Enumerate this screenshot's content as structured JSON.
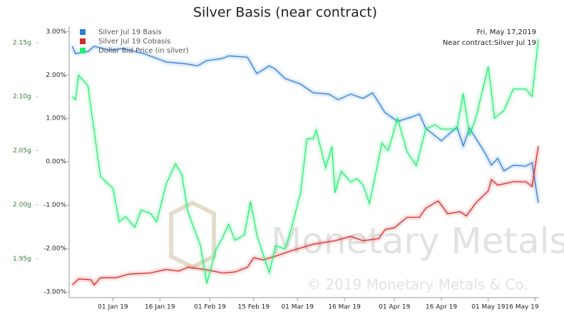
{
  "chart_data": {
    "type": "line",
    "title": "Silver Basis (near contract)",
    "annotations": [
      "Fri, May 17,2019",
      "Near contract:Silver Jul 19"
    ],
    "watermark": [
      "Monetary Metals",
      "© 2019 Monetary Metals & Co."
    ],
    "xlim": [
      "2018-12-18",
      "2019-05-17"
    ],
    "xticks": [
      {
        "value": "2019-01-01",
        "label": "01 Jan 19"
      },
      {
        "value": "2019-01-16",
        "label": "16 Jan 19"
      },
      {
        "value": "2019-02-01",
        "label": "01 Feb 19"
      },
      {
        "value": "2019-02-15",
        "label": "15 Feb 19"
      },
      {
        "value": "2019-03-01",
        "label": "01 Mar 19"
      },
      {
        "value": "2019-03-16",
        "label": "16 Mar 19"
      },
      {
        "value": "2019-04-01",
        "label": "01 Apr 19"
      },
      {
        "value": "2019-04-16",
        "label": "16 Apr 19"
      },
      {
        "value": "2019-05-01",
        "label": "01 May 19"
      },
      {
        "value": "2019-05-16",
        "label": "16 May 19"
      }
    ],
    "ylim": [
      -3.13,
      3.12
    ],
    "yticks": [
      {
        "value": 3,
        "label": "3.00%"
      },
      {
        "value": 2,
        "label": "2.00%"
      },
      {
        "value": 1,
        "label": "1.00%"
      },
      {
        "value": 0,
        "label": "0.00%"
      },
      {
        "value": -1,
        "label": "-1.00%"
      },
      {
        "value": -2,
        "label": "-2.00%"
      },
      {
        "value": -3,
        "label": "-3.00%"
      }
    ],
    "y2lim": [
      1.914,
      2.165
    ],
    "y2ticks": [
      {
        "value": 2.15,
        "label": "2.15g"
      },
      {
        "value": 2.1,
        "label": "2.10g"
      },
      {
        "value": 2.05,
        "label": "2.05g"
      },
      {
        "value": 2.0,
        "label": "2.00g"
      },
      {
        "value": 1.95,
        "label": "1.95g"
      }
    ],
    "legend": "top-left",
    "series": [
      {
        "name": "Silver Jul 19 Basis",
        "color": "#2f7fd3",
        "x": [
          "2018-12-19",
          "2018-12-20",
          "2018-12-24",
          "2018-12-26",
          "2018-12-31",
          "2019-01-04",
          "2019-01-11",
          "2019-01-18",
          "2019-01-25",
          "2019-01-28",
          "2019-01-31",
          "2019-02-05",
          "2019-02-07",
          "2019-02-13",
          "2019-02-16",
          "2019-02-20",
          "2019-02-22",
          "2019-02-25",
          "2019-03-02",
          "2019-03-06",
          "2019-03-11",
          "2019-03-14",
          "2019-03-18",
          "2019-03-22",
          "2019-03-25",
          "2019-03-29",
          "2019-04-02",
          "2019-04-06",
          "2019-04-09",
          "2019-04-11",
          "2019-04-16",
          "2019-04-21",
          "2019-04-23",
          "2019-04-25",
          "2019-04-30",
          "2019-05-02",
          "2019-05-04",
          "2019-05-06",
          "2019-05-09",
          "2019-05-13",
          "2019-05-15",
          "2019-05-17"
        ],
        "values": [
          2.66,
          2.49,
          2.54,
          2.66,
          2.57,
          2.61,
          2.49,
          2.3,
          2.25,
          2.21,
          2.33,
          2.38,
          2.44,
          2.41,
          2.03,
          2.21,
          2.13,
          1.92,
          1.79,
          1.59,
          1.56,
          1.43,
          1.56,
          1.46,
          1.59,
          1.13,
          0.93,
          1.02,
          1.1,
          0.77,
          0.48,
          0.8,
          0.36,
          0.77,
          0.2,
          -0.08,
          0.08,
          -0.21,
          -0.08,
          -0.1,
          -0.02,
          -0.95
        ]
      },
      {
        "name": "Silver Jul 19 Cobasis",
        "color": "#d42a2a",
        "x": [
          "2018-12-19",
          "2018-12-21",
          "2018-12-25",
          "2018-12-26",
          "2018-12-28",
          "2019-01-02",
          "2019-01-06",
          "2019-01-13",
          "2019-01-18",
          "2019-01-22",
          "2019-01-25",
          "2019-01-31",
          "2019-02-05",
          "2019-02-09",
          "2019-02-13",
          "2019-02-15",
          "2019-02-18",
          "2019-02-23",
          "2019-02-27",
          "2019-03-06",
          "2019-03-13",
          "2019-03-18",
          "2019-03-22",
          "2019-03-27",
          "2019-03-29",
          "2019-04-01",
          "2019-04-05",
          "2019-04-09",
          "2019-04-11",
          "2019-04-15",
          "2019-04-18",
          "2019-04-22",
          "2019-04-24",
          "2019-04-27",
          "2019-05-01",
          "2019-05-02",
          "2019-05-04",
          "2019-05-09",
          "2019-05-13",
          "2019-05-15",
          "2019-05-17"
        ],
        "values": [
          -2.84,
          -2.7,
          -2.72,
          -2.84,
          -2.67,
          -2.67,
          -2.59,
          -2.56,
          -2.48,
          -2.52,
          -2.43,
          -2.49,
          -2.56,
          -2.54,
          -2.43,
          -2.21,
          -2.26,
          -2.15,
          -2.05,
          -1.9,
          -1.82,
          -1.72,
          -1.82,
          -1.77,
          -1.56,
          -1.52,
          -1.28,
          -1.28,
          -1.07,
          -0.9,
          -1.2,
          -1.15,
          -1.25,
          -0.95,
          -0.67,
          -0.41,
          -0.54,
          -0.46,
          -0.46,
          -0.57,
          0.36
        ]
      },
      {
        "name": "Dollar Bid Price (in silver)",
        "color": "#22ee6e",
        "axis": "y2",
        "x": [
          "2018-12-19",
          "2018-12-20",
          "2018-12-21",
          "2018-12-24",
          "2018-12-28",
          "2019-01-01",
          "2019-01-03",
          "2019-01-05",
          "2019-01-08",
          "2019-01-10",
          "2019-01-13",
          "2019-01-15",
          "2019-01-18",
          "2019-01-21",
          "2019-01-23",
          "2019-01-25",
          "2019-01-29",
          "2019-01-31",
          "2019-02-03",
          "2019-02-05",
          "2019-02-07",
          "2019-02-09",
          "2019-02-12",
          "2019-02-14",
          "2019-02-16",
          "2019-02-18",
          "2019-02-20",
          "2019-02-22",
          "2019-02-25",
          "2019-02-27",
          "2019-03-02",
          "2019-03-04",
          "2019-03-06",
          "2019-03-07",
          "2019-03-10",
          "2019-03-12",
          "2019-03-13",
          "2019-03-15",
          "2019-03-18",
          "2019-03-20",
          "2019-03-22",
          "2019-03-24",
          "2019-03-28",
          "2019-03-30",
          "2019-04-02",
          "2019-04-05",
          "2019-04-08",
          "2019-04-11",
          "2019-04-14",
          "2019-04-16",
          "2019-04-21",
          "2019-04-23",
          "2019-04-25",
          "2019-04-27",
          "2019-05-01",
          "2019-05-03",
          "2019-05-06",
          "2019-05-09",
          "2019-05-13",
          "2019-05-15",
          "2019-05-17"
        ],
        "values": [
          2.1,
          2.097,
          2.12,
          2.11,
          2.026,
          2.015,
          1.984,
          1.989,
          1.979,
          1.995,
          1.992,
          1.984,
          2.019,
          2.038,
          2.028,
          1.993,
          1.962,
          1.927,
          1.959,
          1.969,
          1.982,
          1.967,
          1.972,
          2.003,
          1.972,
          1.954,
          1.937,
          1.962,
          1.959,
          1.978,
          2.011,
          2.061,
          2.061,
          2.069,
          2.034,
          2.054,
          2.011,
          2.031,
          2.021,
          2.024,
          2.018,
          2.001,
          2.057,
          2.05,
          2.08,
          2.049,
          2.036,
          2.07,
          2.074,
          2.07,
          2.07,
          2.103,
          2.064,
          2.08,
          2.128,
          2.08,
          2.087,
          2.107,
          2.107,
          2.1,
          2.153
        ]
      }
    ]
  }
}
